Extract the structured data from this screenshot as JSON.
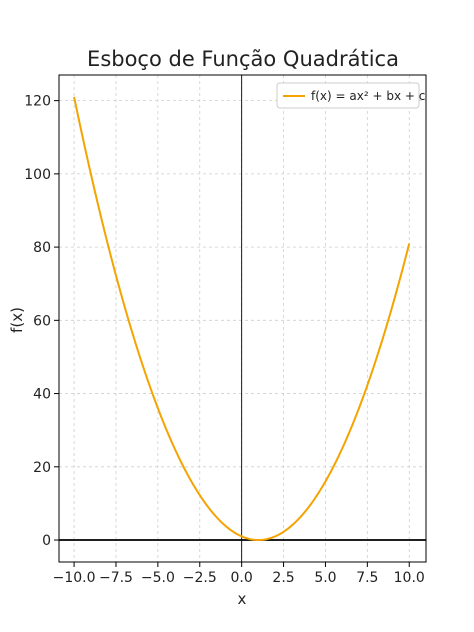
{
  "chart_data": {
    "type": "line",
    "title": "Esboço de Função Quadrática",
    "xlabel": "x",
    "ylabel": "f(x)",
    "xlim": [
      -10.9,
      11.0
    ],
    "ylim": [
      -6,
      127
    ],
    "xticks": [
      -10,
      -7.5,
      -5,
      -2.5,
      0,
      2.5,
      5,
      7.5,
      10
    ],
    "xtick_labels": [
      "−10.0",
      "−7.5",
      "−5.0",
      "−2.5",
      "0.0",
      "2.5",
      "5.0",
      "7.5",
      "10.0"
    ],
    "yticks": [
      0,
      20,
      40,
      60,
      80,
      100,
      120
    ],
    "ytick_labels": [
      "0",
      "20",
      "40",
      "60",
      "80",
      "100",
      "120"
    ],
    "grid": true,
    "legend_position": "top-right",
    "series": [
      {
        "name": "f(x) = ax² + bx + c",
        "color": "#f5a300",
        "function": {
          "a": 1,
          "b": -2,
          "c": 1
        },
        "x_range": [
          -10,
          10
        ]
      }
    ],
    "reference_lines": {
      "horizontal_y": 0,
      "vertical_x": 0
    }
  }
}
